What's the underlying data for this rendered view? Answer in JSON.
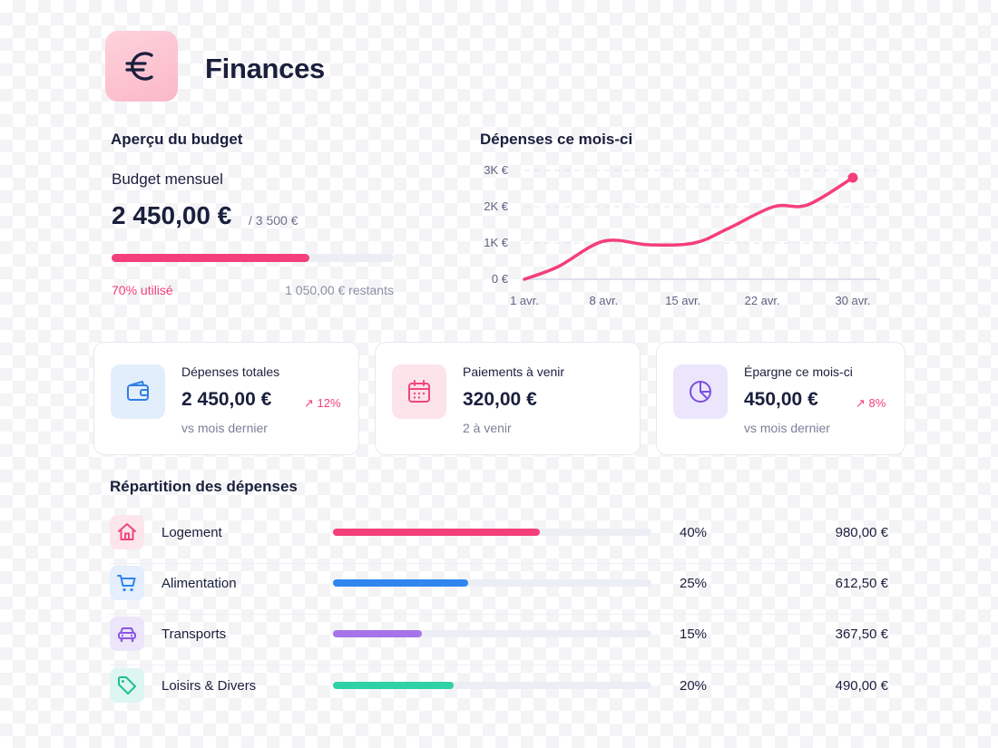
{
  "header": {
    "title": "Finances",
    "icon": "euro-icon"
  },
  "budget": {
    "title": "Aperçu du budget",
    "subtitle": "Budget mensuel",
    "amount": "2 450,00 €",
    "total": "/ 3 500 €",
    "progress": 0.7,
    "used_label": "70% utilisé",
    "remaining_label": "1 050,00 € restants",
    "color": "#f43f7a"
  },
  "chart_data": {
    "type": "line",
    "title": "Dépenses ce mois-ci",
    "x_labels": [
      "1 avr.",
      "8 avr.",
      "15 avr.",
      "22 avr.",
      "30 avr."
    ],
    "y_labels": [
      "0 €",
      "1K €",
      "2K €",
      "3K €"
    ],
    "ylim": [
      0,
      3000
    ],
    "grid": true,
    "points": [
      {
        "day": 1,
        "value": 0
      },
      {
        "day": 4,
        "value": 350
      },
      {
        "day": 8,
        "value": 1050
      },
      {
        "day": 12,
        "value": 950
      },
      {
        "day": 16,
        "value": 1000
      },
      {
        "day": 19,
        "value": 1400
      },
      {
        "day": 23,
        "value": 2000
      },
      {
        "day": 26,
        "value": 2050
      },
      {
        "day": 30,
        "value": 2800
      }
    ],
    "color": "#f43f7a"
  },
  "cards": [
    {
      "label": "Dépenses totales",
      "value": "2 450,00 €",
      "trend": "↗ 12%",
      "note": "vs mois dernier",
      "icon": "wallet-icon",
      "icon_bg": "#e3eefc",
      "icon_color": "#2f7fe6"
    },
    {
      "label": "Paiements à venir",
      "value": "320,00 €",
      "trend": "",
      "note": "2 à venir",
      "icon": "calendar-icon",
      "icon_bg": "#fde3ea",
      "icon_color": "#f0477e"
    },
    {
      "label": "Épargne ce mois-ci",
      "value": "450,00 €",
      "trend": "↗ 8%",
      "note": "vs mois dernier",
      "icon": "pie-chart-icon",
      "icon_bg": "#ece6fc",
      "icon_color": "#7b4fe0"
    }
  ],
  "breakdown": {
    "title": "Répartition des dépenses",
    "items": [
      {
        "label": "Logement",
        "percent": "40%",
        "fraction": 0.65,
        "amount": "980,00 €",
        "color": "#f43f7a",
        "icon": "home-icon",
        "icon_bg": "#fde5ec"
      },
      {
        "label": "Alimentation",
        "percent": "25%",
        "fraction": 0.425,
        "amount": "612,50 €",
        "color": "#2f86ee",
        "icon": "cart-icon",
        "icon_bg": "#e4eefc"
      },
      {
        "label": "Transports",
        "percent": "15%",
        "fraction": 0.28,
        "amount": "367,50 €",
        "color": "#a574ea",
        "icon": "car-icon",
        "icon_bg": "#ede6fb"
      },
      {
        "label": "Loisirs & Divers",
        "percent": "20%",
        "fraction": 0.38,
        "amount": "490,00 €",
        "color": "#2fd1a5",
        "icon": "tag-icon",
        "icon_bg": "#ddf6ef"
      }
    ]
  }
}
